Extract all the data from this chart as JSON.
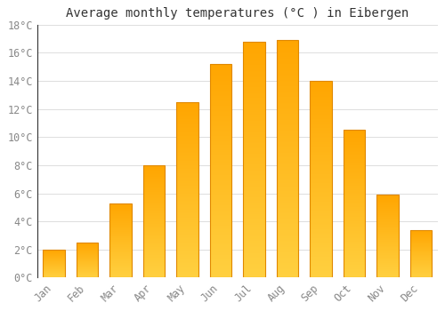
{
  "title": "Average monthly temperatures (°C ) in Eibergen",
  "months": [
    "Jan",
    "Feb",
    "Mar",
    "Apr",
    "May",
    "Jun",
    "Jul",
    "Aug",
    "Sep",
    "Oct",
    "Nov",
    "Dec"
  ],
  "values": [
    2.0,
    2.5,
    5.3,
    8.0,
    12.5,
    15.2,
    16.8,
    16.9,
    14.0,
    10.5,
    5.9,
    3.4
  ],
  "bar_color_bottom": "#FFD040",
  "bar_color_top": "#FFA500",
  "bar_edge_color": "#E08800",
  "background_color": "#FFFFFF",
  "grid_color": "#DDDDDD",
  "ylim": [
    0,
    18
  ],
  "yticks": [
    0,
    2,
    4,
    6,
    8,
    10,
    12,
    14,
    16,
    18
  ],
  "ytick_labels": [
    "0°C",
    "2°C",
    "4°C",
    "6°C",
    "8°C",
    "10°C",
    "12°C",
    "14°C",
    "16°C",
    "18°C"
  ],
  "title_fontsize": 10,
  "tick_fontsize": 8.5,
  "tick_color": "#888888",
  "title_color": "#333333",
  "bar_width": 0.65,
  "figsize": [
    5.0,
    3.5
  ],
  "dpi": 100
}
